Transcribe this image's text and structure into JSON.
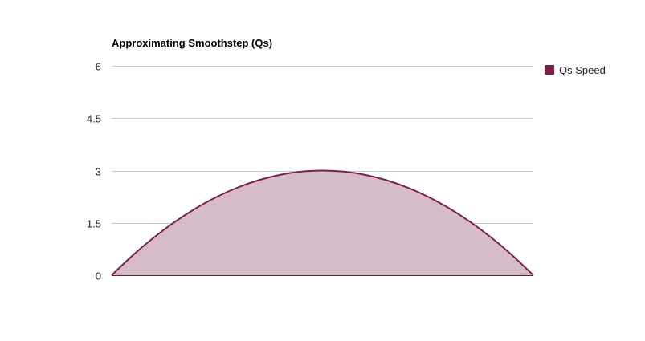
{
  "chart_data": {
    "type": "area",
    "title": "Approximating Smoothstep (Qs)",
    "xlabel": "",
    "ylabel": "",
    "ylim": [
      0,
      6
    ],
    "yticks": [
      {
        "value": 0,
        "label": "0"
      },
      {
        "value": 1.5,
        "label": "1.5"
      },
      {
        "value": 3,
        "label": "3"
      },
      {
        "value": 4.5,
        "label": "4.5"
      },
      {
        "value": 6,
        "label": "6"
      }
    ],
    "xlim": [
      0,
      1
    ],
    "grid": true,
    "legend_position": "right",
    "series": [
      {
        "name": "Qs Speed",
        "color": "#7b1f4d",
        "fill": "#d6bbc9",
        "x": [
          0,
          0.05,
          0.1,
          0.15,
          0.2,
          0.25,
          0.3,
          0.35,
          0.4,
          0.45,
          0.5,
          0.55,
          0.6,
          0.65,
          0.7,
          0.75,
          0.8,
          0.85,
          0.9,
          0.95,
          1
        ],
        "y": [
          0,
          0.57,
          1.08,
          1.53,
          1.92,
          2.25,
          2.52,
          2.73,
          2.88,
          2.97,
          3.0,
          2.97,
          2.88,
          2.73,
          2.52,
          2.25,
          1.92,
          1.53,
          1.08,
          0.57,
          0
        ]
      }
    ]
  }
}
